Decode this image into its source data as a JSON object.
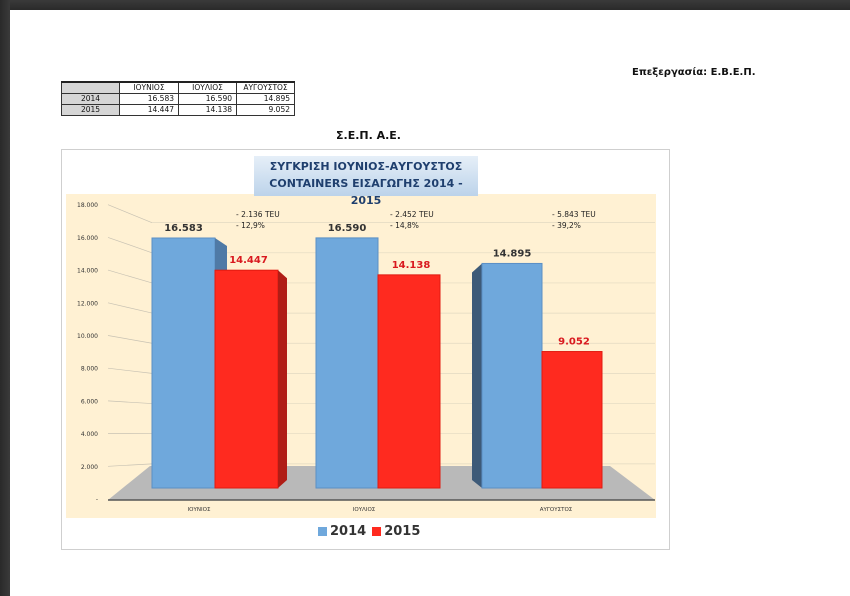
{
  "header": {
    "credit": "Επεξεργασία: Ε.Β.Ε.Π.",
    "company": "Σ.Ε.Π. Α.Ε."
  },
  "summary_table": {
    "columns": [
      "",
      "ΙΟΥΝΙΟΣ",
      "ΙΟΥΛΙΟΣ",
      "ΑΥΓΟΥΣΤΟΣ"
    ],
    "rows": [
      {
        "year": "2014",
        "values": [
          "16.583",
          "16.590",
          "14.895"
        ]
      },
      {
        "year": "2015",
        "values": [
          "14.447",
          "14.138",
          "9.052"
        ]
      }
    ]
  },
  "chart_data": {
    "type": "bar",
    "title_line1": "ΣΥΓΚΡΙΣΗ ΙΟΥΝΙΟΣ-ΑΥΓΟΥΣΤΟΣ",
    "title_line2": "CONTAINERS ΕΙΣΑΓΩΓΗΣ 2014 - 2015",
    "categories": [
      "ΙΟΥΝΙΟΣ",
      "ΙΟΥΛΙΟΣ",
      "ΑΥΓΟΥΣΤΟΣ"
    ],
    "series": [
      {
        "name": "2014",
        "values": [
          16583,
          16590,
          14895
        ],
        "labels": [
          "16.583",
          "16.590",
          "14.895"
        ],
        "color": "#6fa8dc"
      },
      {
        "name": "2015",
        "values": [
          14447,
          14138,
          9052
        ],
        "labels": [
          "14.447",
          "14.138",
          "9.052"
        ],
        "color": "#ff2a1f"
      }
    ],
    "annotations": [
      {
        "line1": "- 2.136 TEU",
        "line2": "- 12,9%"
      },
      {
        "line1": "- 2.452 TEU",
        "line2": "- 14,8%"
      },
      {
        "line1": "- 5.843 TEU",
        "line2": "- 39,2%"
      }
    ],
    "yticks": [
      "-",
      "2.000",
      "4.000",
      "6.000",
      "8.000",
      "10.000",
      "12.000",
      "14.000",
      "16.000",
      "18.000"
    ],
    "ylim": [
      0,
      18000
    ],
    "xlabel": "",
    "ylabel": "",
    "grid": true,
    "legend_position": "bottom"
  }
}
